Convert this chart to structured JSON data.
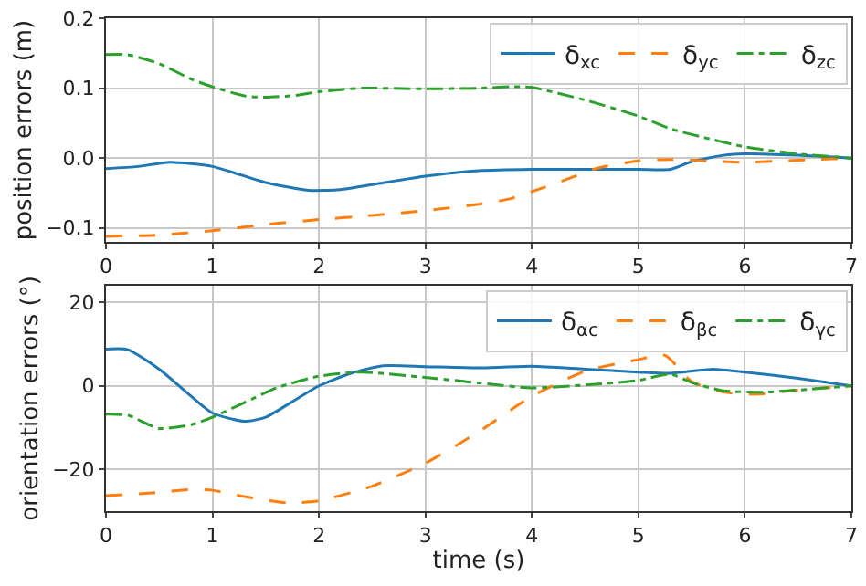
{
  "chart_data": [
    {
      "type": "line",
      "ylabel": "position errors (m)",
      "xlim": [
        0,
        7
      ],
      "xticks": [
        0,
        1,
        2,
        3,
        4,
        5,
        6,
        7
      ],
      "ylim": [
        -0.12,
        0.2
      ],
      "yticks": [
        -0.1,
        {
          "value": 0,
          "label": "0.0"
        },
        0.1,
        0.2
      ],
      "grid": true,
      "legend": "top right",
      "marker": "none",
      "series": [
        {
          "name": "δ$_{xc}$",
          "color": "#1f77b4",
          "line_style": "solid",
          "x": [
            0,
            0.3,
            0.6,
            1,
            1.5,
            1.9,
            2.2,
            2.5,
            3,
            3.5,
            4,
            4.5,
            5,
            5.3,
            5.5,
            5.8,
            6,
            6.5,
            7
          ],
          "values": [
            -0.015,
            -0.012,
            -0.006,
            -0.012,
            -0.035,
            -0.046,
            -0.045,
            -0.038,
            -0.026,
            -0.018,
            -0.016,
            -0.016,
            -0.016,
            -0.016,
            -0.005,
            0.004,
            0.006,
            0.004,
            0
          ]
        },
        {
          "name": "δ$_{yc}$",
          "color": "#ff7f0e",
          "line_style": "dashed",
          "x": [
            0,
            0.5,
            1,
            1.5,
            2,
            2.5,
            3,
            3.5,
            3.8,
            4,
            4.3,
            4.6,
            5,
            5.3,
            6,
            6.5,
            7
          ],
          "values": [
            -0.112,
            -0.11,
            -0.104,
            -0.095,
            -0.088,
            -0.082,
            -0.075,
            -0.066,
            -0.058,
            -0.048,
            -0.032,
            -0.015,
            -0.004,
            -0.002,
            -0.006,
            -0.003,
            0
          ]
        },
        {
          "name": "δ$_{zc}$",
          "color": "#2ca02c",
          "line_style": "dashdot",
          "x": [
            0,
            0.2,
            0.5,
            0.8,
            1,
            1.3,
            1.5,
            1.8,
            2,
            2.4,
            3,
            3.5,
            3.8,
            4,
            4.5,
            5,
            5.3,
            5.6,
            6,
            6.5,
            7
          ],
          "values": [
            0.148,
            0.148,
            0.135,
            0.113,
            0.102,
            0.089,
            0.087,
            0.09,
            0.095,
            0.1,
            0.099,
            0.1,
            0.102,
            0.101,
            0.083,
            0.06,
            0.042,
            0.03,
            0.016,
            0.006,
            0
          ]
        }
      ]
    },
    {
      "type": "line",
      "xlabel": "time (s)",
      "ylabel": "orientation errors (°)",
      "xlim": [
        0,
        7
      ],
      "xticks": [
        0,
        1,
        2,
        3,
        4,
        5,
        6,
        7
      ],
      "ylim": [
        -30,
        24
      ],
      "yticks": [
        -20,
        0,
        20
      ],
      "grid": true,
      "legend": "top right",
      "marker": "none",
      "series": [
        {
          "name": "δ$_{αc}$",
          "color": "#1f77b4",
          "line_style": "solid",
          "x": [
            0,
            0.2,
            0.5,
            0.8,
            1,
            1.3,
            1.5,
            1.8,
            2,
            2.3,
            2.6,
            3,
            3.5,
            4,
            4.5,
            5,
            5.3,
            5.7,
            6,
            6.5,
            7
          ],
          "values": [
            8.8,
            8.7,
            4,
            -2.5,
            -6.5,
            -8.5,
            -7.5,
            -3,
            0,
            3,
            4.8,
            4.6,
            4.3,
            4.7,
            4,
            3.3,
            3,
            4,
            3.3,
            1.8,
            0
          ]
        },
        {
          "name": "δ$_{βc}$",
          "color": "#ff7f0e",
          "line_style": "dashed",
          "x": [
            0,
            0.5,
            0.8,
            1,
            1.3,
            1.7,
            2,
            2.5,
            3,
            3.5,
            4,
            4.5,
            5,
            5.25,
            5.5,
            5.8,
            6.1,
            6.5,
            7
          ],
          "values": [
            -26.3,
            -25.5,
            -24.8,
            -25,
            -26.5,
            -28,
            -27.5,
            -24,
            -18.5,
            -11,
            -2.5,
            3.5,
            6.3,
            7.3,
            1,
            -1.5,
            -2,
            -1,
            0
          ]
        },
        {
          "name": "δ$_{γc}$",
          "color": "#2ca02c",
          "line_style": "dashdot",
          "x": [
            0,
            0.2,
            0.5,
            0.8,
            1,
            1.3,
            1.6,
            2,
            2.4,
            3,
            3.5,
            4,
            4.5,
            5,
            5.3,
            5.5,
            5.8,
            6.2,
            7
          ],
          "values": [
            -6.8,
            -7,
            -10.2,
            -9.3,
            -7.5,
            -4,
            -0.5,
            2.3,
            3.3,
            2,
            0.7,
            -0.5,
            0.2,
            1.3,
            2.8,
            0.8,
            -1.2,
            -1.5,
            0
          ]
        }
      ]
    }
  ]
}
